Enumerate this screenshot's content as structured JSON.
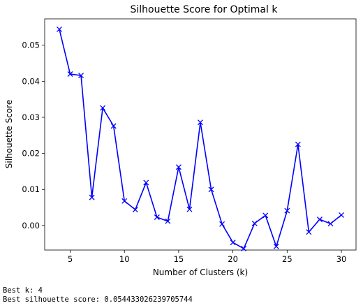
{
  "chart_data": {
    "type": "line",
    "title": "Silhouette Score for Optimal k",
    "xlabel": "Number of Clusters (k)",
    "ylabel": "Silhouette Score",
    "xlim": [
      2.65,
      31.35
    ],
    "ylim": [
      -0.0068,
      0.0573
    ],
    "xticks": [
      5,
      10,
      15,
      20,
      25,
      30
    ],
    "yticks": [
      0.0,
      0.01,
      0.02,
      0.03,
      0.04,
      0.05
    ],
    "ytick_labels": [
      "0.00",
      "0.01",
      "0.02",
      "0.03",
      "0.04",
      "0.05"
    ],
    "grid": false,
    "line_color": "#0000ff",
    "marker": "x",
    "series": [
      {
        "x": [
          4,
          5,
          6,
          7,
          8,
          9,
          10,
          11,
          12,
          13,
          14,
          15,
          16,
          17,
          18,
          19,
          20,
          21,
          22,
          23,
          24,
          25,
          26,
          27,
          28,
          29,
          30
        ],
        "values": [
          0.0544,
          0.042,
          0.0416,
          0.0078,
          0.0326,
          0.0276,
          0.0068,
          0.0044,
          0.0119,
          0.0023,
          0.0012,
          0.0162,
          0.0045,
          0.0286,
          0.01,
          0.0004,
          -0.0047,
          -0.0064,
          0.0006,
          0.0028,
          -0.0058,
          0.0041,
          0.0225,
          -0.0018,
          0.0017,
          0.0005,
          0.0029
        ]
      }
    ]
  },
  "output": {
    "line1": "Best k: 4",
    "line2": "Best silhouette score: 0.054433026239705744"
  }
}
